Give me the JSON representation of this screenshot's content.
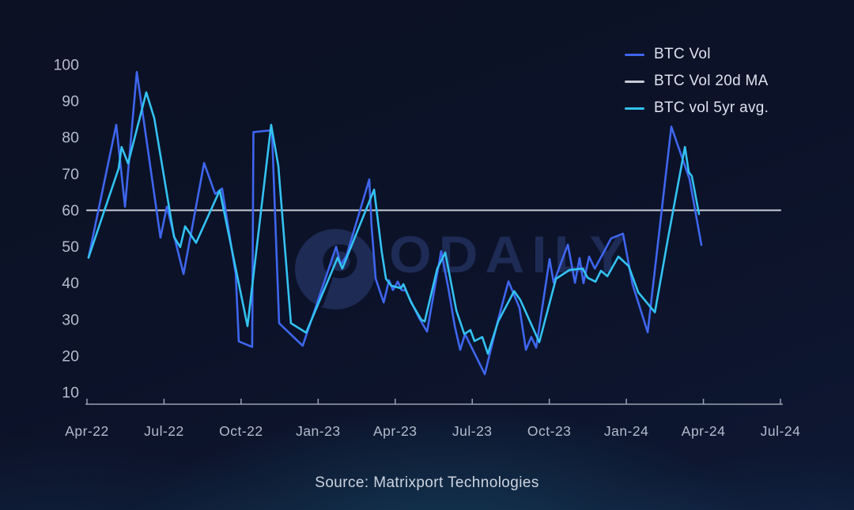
{
  "watermark": {
    "text": "ODAILY",
    "logo_icon": "odaily-circle-logo",
    "color": "#1d2b55"
  },
  "footer": {
    "source_label": "Source: Matrixport Technologies"
  },
  "legend": {
    "position": "top-right"
  },
  "colors": {
    "background": "#0c1228",
    "bottom_glow": "#17546d",
    "axis_text": "#b3bccd",
    "axis_line": "#99a1b3",
    "btc_vol": "#3e66ee",
    "btc_vol_20d_ma": "#c7ccd6",
    "btc_vol_5yr_avg": "#33c2f2"
  },
  "chart_data": {
    "type": "line",
    "title": "",
    "xlabel": "",
    "ylabel": "",
    "grid": false,
    "legend_position": "top-right",
    "x_axis": {
      "unit": "months since Apr-2022",
      "range": [
        0,
        27
      ],
      "ticks": [
        {
          "t": 0,
          "label": "Apr-22"
        },
        {
          "t": 3,
          "label": "Jul-22"
        },
        {
          "t": 6,
          "label": "Oct-22"
        },
        {
          "t": 9,
          "label": "Jan-23"
        },
        {
          "t": 12,
          "label": "Apr-23"
        },
        {
          "t": 15,
          "label": "Jul-23"
        },
        {
          "t": 18,
          "label": "Oct-23"
        },
        {
          "t": 21,
          "label": "Jan-24"
        },
        {
          "t": 24,
          "label": "Apr-24"
        },
        {
          "t": 27,
          "label": "Jul-24"
        }
      ]
    },
    "y_axis": {
      "range": [
        10,
        100
      ],
      "ticks": [
        100,
        90,
        80,
        70,
        60,
        50,
        40,
        30,
        20,
        10
      ]
    },
    "series": [
      {
        "name": "BTC Vol",
        "color": "#3e66ee",
        "width": 2.6,
        "points": [
          [
            0.06,
            47
          ],
          [
            1.14,
            83.5
          ],
          [
            1.48,
            61
          ],
          [
            1.94,
            98
          ],
          [
            2.86,
            52.5
          ],
          [
            3.11,
            61
          ],
          [
            3.76,
            42.5
          ],
          [
            4.56,
            73
          ],
          [
            4.99,
            64.5
          ],
          [
            5.26,
            66
          ],
          [
            5.79,
            42.5
          ],
          [
            5.91,
            24
          ],
          [
            6.43,
            22.5
          ],
          [
            6.48,
            81.5
          ],
          [
            7.2,
            82
          ],
          [
            7.48,
            29
          ],
          [
            8.4,
            22.8
          ],
          [
            9.7,
            50
          ],
          [
            9.88,
            45
          ],
          [
            10.1,
            47.5
          ],
          [
            10.99,
            68.5
          ],
          [
            11.08,
            55.6
          ],
          [
            11.24,
            41.2
          ],
          [
            11.55,
            34.7
          ],
          [
            11.76,
            40.8
          ],
          [
            11.91,
            38.1
          ],
          [
            12.1,
            40.4
          ],
          [
            12.25,
            38.1
          ],
          [
            12.41,
            38
          ],
          [
            12.93,
            30.4
          ],
          [
            13.24,
            26.7
          ],
          [
            13.79,
            48.8
          ],
          [
            14.07,
            38.6
          ],
          [
            14.32,
            28.2
          ],
          [
            14.53,
            21.7
          ],
          [
            14.72,
            26
          ],
          [
            15.49,
            15
          ],
          [
            16.01,
            30
          ],
          [
            16.41,
            40.5
          ],
          [
            16.84,
            33.2
          ],
          [
            17.09,
            21.7
          ],
          [
            17.3,
            25.2
          ],
          [
            17.49,
            22.3
          ],
          [
            18.01,
            46.6
          ],
          [
            18.17,
            40.1
          ],
          [
            18.72,
            50.6
          ],
          [
            19.0,
            40.1
          ],
          [
            19.18,
            46.9
          ],
          [
            19.33,
            40
          ],
          [
            19.55,
            47.3
          ],
          [
            19.77,
            44
          ],
          [
            20.41,
            52.3
          ],
          [
            20.87,
            53.6
          ],
          [
            21.24,
            39.7
          ],
          [
            21.83,
            26.5
          ],
          [
            22.75,
            83
          ],
          [
            23.46,
            68.6
          ],
          [
            23.92,
            50.5
          ]
        ]
      },
      {
        "name": "BTC Vol 20d MA",
        "color": "#c7ccd6",
        "width": 2,
        "points": [
          [
            0,
            60
          ],
          [
            27,
            60
          ]
        ]
      },
      {
        "name": "BTC vol 5yr avg.",
        "color": "#33c2f2",
        "width": 2.6,
        "points": [
          [
            0.06,
            47
          ],
          [
            1.23,
            71.5
          ],
          [
            1.35,
            77.4
          ],
          [
            1.6,
            72.9
          ],
          [
            2.31,
            92.4
          ],
          [
            2.62,
            85.3
          ],
          [
            3.39,
            52.7
          ],
          [
            3.63,
            49.9
          ],
          [
            3.82,
            55.6
          ],
          [
            4.25,
            51.1
          ],
          [
            5.17,
            65.5
          ],
          [
            6.25,
            28.2
          ],
          [
            7.17,
            83.5
          ],
          [
            7.45,
            72.2
          ],
          [
            7.94,
            29
          ],
          [
            8.53,
            26.4
          ],
          [
            9.76,
            47
          ],
          [
            9.94,
            44
          ],
          [
            11.18,
            65.7
          ],
          [
            11.48,
            48.4
          ],
          [
            11.64,
            41.2
          ],
          [
            11.85,
            39.3
          ],
          [
            12.22,
            38.6
          ],
          [
            12.32,
            39.7
          ],
          [
            12.62,
            34.7
          ],
          [
            13.02,
            29.9
          ],
          [
            13.15,
            29.5
          ],
          [
            13.64,
            44
          ],
          [
            13.95,
            48.4
          ],
          [
            14.38,
            32.5
          ],
          [
            14.69,
            26
          ],
          [
            14.93,
            27.1
          ],
          [
            15.09,
            24.1
          ],
          [
            15.39,
            25.2
          ],
          [
            15.61,
            20.6
          ],
          [
            16.01,
            29.5
          ],
          [
            16.63,
            37.8
          ],
          [
            16.87,
            35.4
          ],
          [
            17.61,
            23.8
          ],
          [
            18.26,
            41.2
          ],
          [
            18.78,
            43.6
          ],
          [
            19.3,
            44
          ],
          [
            19.49,
            41.5
          ],
          [
            19.8,
            40.4
          ],
          [
            20.01,
            43.4
          ],
          [
            20.26,
            41.9
          ],
          [
            20.69,
            47.3
          ],
          [
            21.09,
            44.7
          ],
          [
            21.46,
            37.5
          ],
          [
            22.11,
            32
          ],
          [
            22.63,
            52.7
          ],
          [
            23.28,
            77.4
          ],
          [
            23.43,
            70.5
          ],
          [
            23.55,
            69.4
          ],
          [
            23.83,
            59
          ]
        ]
      }
    ]
  }
}
